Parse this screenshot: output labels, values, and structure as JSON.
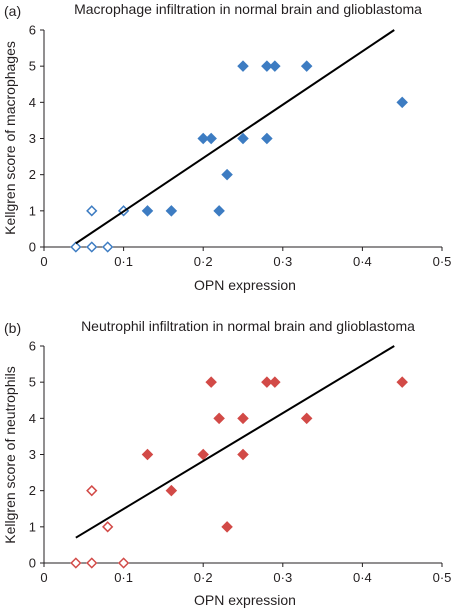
{
  "chart_data": [
    {
      "type": "scatter",
      "panel_label": "(a)",
      "title": "Macrophage infiltration in normal brain and glioblastoma",
      "xlabel": "OPN expression",
      "ylabel": "Kellgren score of macrophages",
      "xlim": [
        0,
        0.5
      ],
      "ylim": [
        0,
        6
      ],
      "x_ticks": [
        0,
        0.1,
        0.2,
        0.3,
        0.4,
        0.5
      ],
      "x_tick_labels": [
        "0",
        "0·1",
        "0·2",
        "0·3",
        "0·4",
        "0·5"
      ],
      "y_ticks": [
        0,
        1,
        2,
        3,
        4,
        5,
        6
      ],
      "y_tick_labels": [
        "0",
        "1",
        "2",
        "3",
        "4",
        "5",
        "6"
      ],
      "grid": false,
      "color": "#3d7cc2",
      "series": [
        {
          "marker": "open-diamond",
          "points": [
            [
              0.04,
              0
            ],
            [
              0.06,
              0
            ],
            [
              0.08,
              0
            ],
            [
              0.06,
              1
            ],
            [
              0.1,
              1
            ]
          ]
        },
        {
          "marker": "filled-diamond",
          "points": [
            [
              0.13,
              1
            ],
            [
              0.16,
              1
            ],
            [
              0.2,
              3
            ],
            [
              0.21,
              3
            ],
            [
              0.22,
              1
            ],
            [
              0.23,
              2
            ],
            [
              0.25,
              3
            ],
            [
              0.25,
              5
            ],
            [
              0.28,
              5
            ],
            [
              0.28,
              3
            ],
            [
              0.29,
              5
            ],
            [
              0.33,
              5
            ],
            [
              0.45,
              4
            ]
          ]
        }
      ],
      "trendline": {
        "x": [
          0.04,
          0.44
        ],
        "y": [
          0.1,
          6.0
        ]
      }
    },
    {
      "type": "scatter",
      "panel_label": "(b)",
      "title": "Neutrophil infiltration in normal brain and glioblastoma",
      "xlabel": "OPN expression",
      "ylabel": "Kellgren score of neutrophils",
      "xlim": [
        0,
        0.5
      ],
      "ylim": [
        0,
        6
      ],
      "x_ticks": [
        0,
        0.1,
        0.2,
        0.3,
        0.4,
        0.5
      ],
      "x_tick_labels": [
        "0",
        "0·1",
        "0·2",
        "0·3",
        "0·4",
        "0·5"
      ],
      "y_ticks": [
        0,
        1,
        2,
        3,
        4,
        5,
        6
      ],
      "y_tick_labels": [
        "0",
        "1",
        "2",
        "3",
        "4",
        "5",
        "6"
      ],
      "grid": false,
      "color": "#d24a47",
      "series": [
        {
          "marker": "open-diamond",
          "points": [
            [
              0.04,
              0
            ],
            [
              0.06,
              0
            ],
            [
              0.1,
              0
            ],
            [
              0.08,
              1
            ],
            [
              0.06,
              2
            ]
          ]
        },
        {
          "marker": "filled-diamond",
          "points": [
            [
              0.13,
              3
            ],
            [
              0.16,
              2
            ],
            [
              0.2,
              3
            ],
            [
              0.21,
              5
            ],
            [
              0.22,
              4
            ],
            [
              0.23,
              1
            ],
            [
              0.25,
              3
            ],
            [
              0.25,
              4
            ],
            [
              0.28,
              5
            ],
            [
              0.29,
              5
            ],
            [
              0.33,
              4
            ],
            [
              0.45,
              5
            ]
          ]
        }
      ],
      "trendline": {
        "x": [
          0.04,
          0.44
        ],
        "y": [
          0.7,
          6.0
        ]
      }
    }
  ]
}
